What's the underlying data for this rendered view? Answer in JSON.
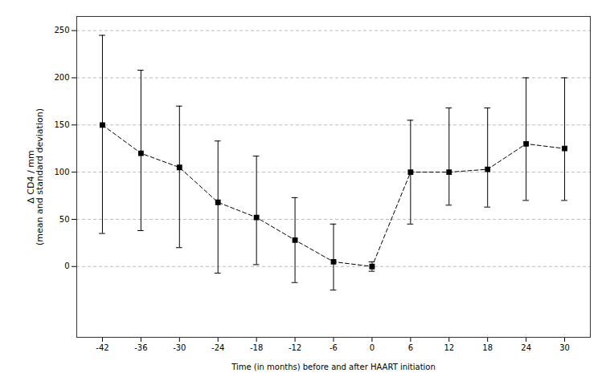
{
  "chart_data": {
    "type": "errorbar",
    "x": [
      -42,
      -36,
      -30,
      -24,
      -18,
      -12,
      -6,
      0,
      6,
      12,
      18,
      24,
      30
    ],
    "values": [
      150,
      120,
      105,
      68,
      52,
      28,
      5,
      0,
      100,
      100,
      103,
      130,
      125
    ],
    "yerr_upper": [
      95,
      88,
      65,
      65,
      65,
      45,
      40,
      5,
      55,
      68,
      65,
      70,
      75
    ],
    "yerr_lower": [
      115,
      82,
      85,
      75,
      50,
      45,
      30,
      5,
      55,
      35,
      40,
      60,
      55
    ],
    "xlabel": "Time (in months) before and after HAART initiation",
    "ylabel": "Δ CD4 / mm\n(mean and standard deviation)",
    "xlim": [
      -46,
      34
    ],
    "ylim": [
      -75,
      265
    ],
    "xticks": [
      -42,
      -36,
      -30,
      -24,
      -18,
      -12,
      -6,
      0,
      6,
      12,
      18,
      24,
      30
    ],
    "yticks": [
      0,
      50,
      100,
      150,
      200,
      250
    ],
    "grid": true,
    "color": "#000000",
    "marker": "square",
    "line_style": "dashed"
  }
}
